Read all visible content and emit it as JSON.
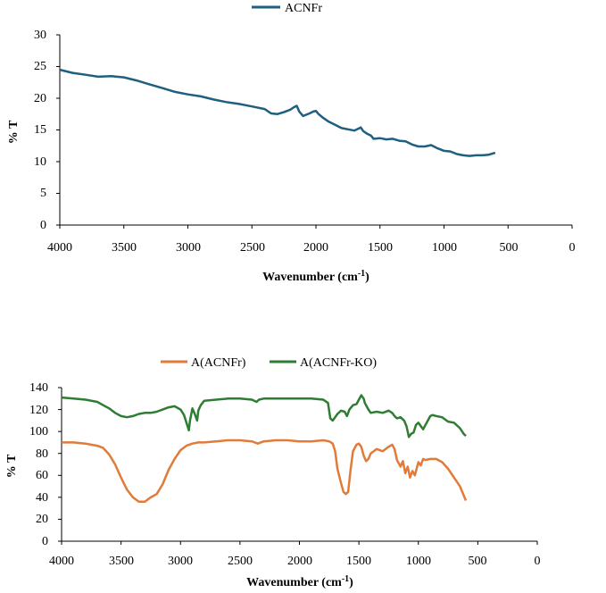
{
  "colors": {
    "acnfr_blue": "#1f5f7f",
    "a_orange": "#e07b39",
    "ako_green": "#2e7d32",
    "axis": "#000000"
  },
  "chart_data": [
    {
      "type": "line",
      "xlabel": "Wavenumber (cm-1)",
      "xlabel_main": "Wavenumber (cm",
      "xlabel_sup": "-1",
      "xlabel_end": ")",
      "ylabel": "% T",
      "xlim": [
        4000,
        0
      ],
      "ylim": [
        0,
        30
      ],
      "xticks": [
        "4000",
        "3500",
        "3000",
        "2500",
        "2000",
        "1500",
        "1000",
        "500",
        "0"
      ],
      "yticks": [
        "0",
        "5",
        "10",
        "15",
        "20",
        "25",
        "30"
      ],
      "legend_position": "top",
      "series": [
        {
          "name": "ACNFr",
          "color": "#1f5f7f",
          "x": [
            4000,
            3900,
            3800,
            3700,
            3600,
            3500,
            3400,
            3300,
            3200,
            3100,
            3000,
            2900,
            2800,
            2700,
            2600,
            2500,
            2400,
            2350,
            2300,
            2250,
            2200,
            2170,
            2150,
            2130,
            2100,
            2050,
            2020,
            2000,
            1980,
            1950,
            1900,
            1850,
            1800,
            1750,
            1700,
            1670,
            1650,
            1630,
            1600,
            1570,
            1550,
            1500,
            1450,
            1400,
            1350,
            1300,
            1250,
            1200,
            1150,
            1100,
            1050,
            1000,
            950,
            900,
            850,
            800,
            750,
            700,
            650,
            600
          ],
          "y": [
            24.5,
            24.0,
            23.7,
            23.4,
            23.5,
            23.3,
            22.8,
            22.2,
            21.6,
            21.0,
            20.6,
            20.3,
            19.8,
            19.4,
            19.1,
            18.7,
            18.3,
            17.6,
            17.5,
            17.8,
            18.2,
            18.6,
            18.8,
            17.9,
            17.2,
            17.6,
            17.9,
            18.0,
            17.5,
            17.0,
            16.3,
            15.8,
            15.3,
            15.1,
            14.9,
            15.2,
            15.4,
            14.8,
            14.4,
            14.1,
            13.6,
            13.7,
            13.5,
            13.6,
            13.3,
            13.2,
            12.7,
            12.4,
            12.4,
            12.6,
            12.1,
            11.7,
            11.6,
            11.2,
            11.0,
            10.9,
            11.0,
            11.0,
            11.1,
            11.4
          ]
        }
      ]
    },
    {
      "type": "line",
      "xlabel": "Wavenumber (cm-1)",
      "xlabel_main": "Wavenumber (cm",
      "xlabel_sup": "-1",
      "xlabel_end": ")",
      "ylabel": "% T",
      "xlim": [
        4000,
        0
      ],
      "ylim": [
        0,
        140
      ],
      "xticks": [
        "4000",
        "3500",
        "3000",
        "2500",
        "2000",
        "1500",
        "1000",
        "500",
        "0"
      ],
      "yticks": [
        "0",
        "20",
        "40",
        "60",
        "80",
        "100",
        "120",
        "140"
      ],
      "legend_position": "top",
      "series": [
        {
          "name": "A(ACNFr)",
          "color": "#e07b39",
          "x": [
            4000,
            3900,
            3800,
            3700,
            3650,
            3600,
            3550,
            3500,
            3450,
            3400,
            3350,
            3300,
            3250,
            3200,
            3150,
            3100,
            3050,
            3000,
            2950,
            2900,
            2850,
            2800,
            2700,
            2600,
            2500,
            2400,
            2350,
            2300,
            2200,
            2100,
            2000,
            1900,
            1800,
            1750,
            1720,
            1700,
            1680,
            1650,
            1630,
            1610,
            1590,
            1570,
            1550,
            1520,
            1500,
            1480,
            1460,
            1440,
            1420,
            1400,
            1350,
            1300,
            1250,
            1220,
            1200,
            1180,
            1150,
            1130,
            1110,
            1090,
            1070,
            1050,
            1030,
            1000,
            980,
            960,
            940,
            900,
            850,
            800,
            750,
            700,
            650,
            600
          ],
          "y": [
            90,
            90,
            89,
            87,
            85,
            79,
            70,
            58,
            47,
            40,
            36,
            36,
            40,
            43,
            52,
            65,
            75,
            83,
            87,
            89,
            90,
            90,
            91,
            92,
            92,
            91,
            89,
            91,
            92,
            92,
            91,
            91,
            92,
            91,
            89,
            82,
            66,
            53,
            45,
            43,
            45,
            65,
            82,
            88,
            89,
            86,
            78,
            73,
            75,
            80,
            84,
            82,
            86,
            88,
            84,
            74,
            68,
            73,
            62,
            68,
            58,
            64,
            60,
            72,
            69,
            75,
            74,
            75,
            75,
            72,
            66,
            58,
            50,
            37
          ]
        },
        {
          "name": "A(ACNFr-KO)",
          "color": "#2e7d32",
          "x": [
            4000,
            3900,
            3800,
            3700,
            3650,
            3600,
            3550,
            3500,
            3450,
            3400,
            3350,
            3300,
            3250,
            3200,
            3150,
            3100,
            3050,
            3000,
            2970,
            2950,
            2930,
            2920,
            2900,
            2880,
            2860,
            2850,
            2830,
            2800,
            2700,
            2600,
            2500,
            2400,
            2360,
            2340,
            2300,
            2200,
            2100,
            2000,
            1900,
            1800,
            1760,
            1740,
            1720,
            1700,
            1680,
            1650,
            1620,
            1600,
            1580,
            1550,
            1520,
            1500,
            1480,
            1460,
            1450,
            1420,
            1400,
            1350,
            1300,
            1250,
            1220,
            1200,
            1180,
            1150,
            1120,
            1100,
            1090,
            1080,
            1060,
            1040,
            1020,
            1000,
            980,
            960,
            940,
            920,
            900,
            880,
            850,
            800,
            750,
            700,
            650,
            620,
            600
          ],
          "y": [
            131,
            130,
            129,
            127,
            124,
            121,
            117,
            114,
            113,
            114,
            116,
            117,
            117,
            118,
            120,
            122,
            123,
            120,
            115,
            108,
            101,
            110,
            121,
            116,
            110,
            119,
            124,
            128,
            129,
            130,
            130,
            129,
            127,
            129,
            130,
            130,
            130,
            130,
            130,
            129,
            126,
            112,
            110,
            113,
            116,
            119,
            118,
            114,
            120,
            124,
            125,
            129,
            133,
            130,
            126,
            120,
            117,
            118,
            117,
            119,
            117,
            114,
            112,
            113,
            110,
            105,
            100,
            95,
            98,
            99,
            106,
            108,
            105,
            102,
            106,
            110,
            114,
            115,
            114,
            113,
            109,
            108,
            103,
            98,
            96
          ]
        }
      ]
    }
  ]
}
